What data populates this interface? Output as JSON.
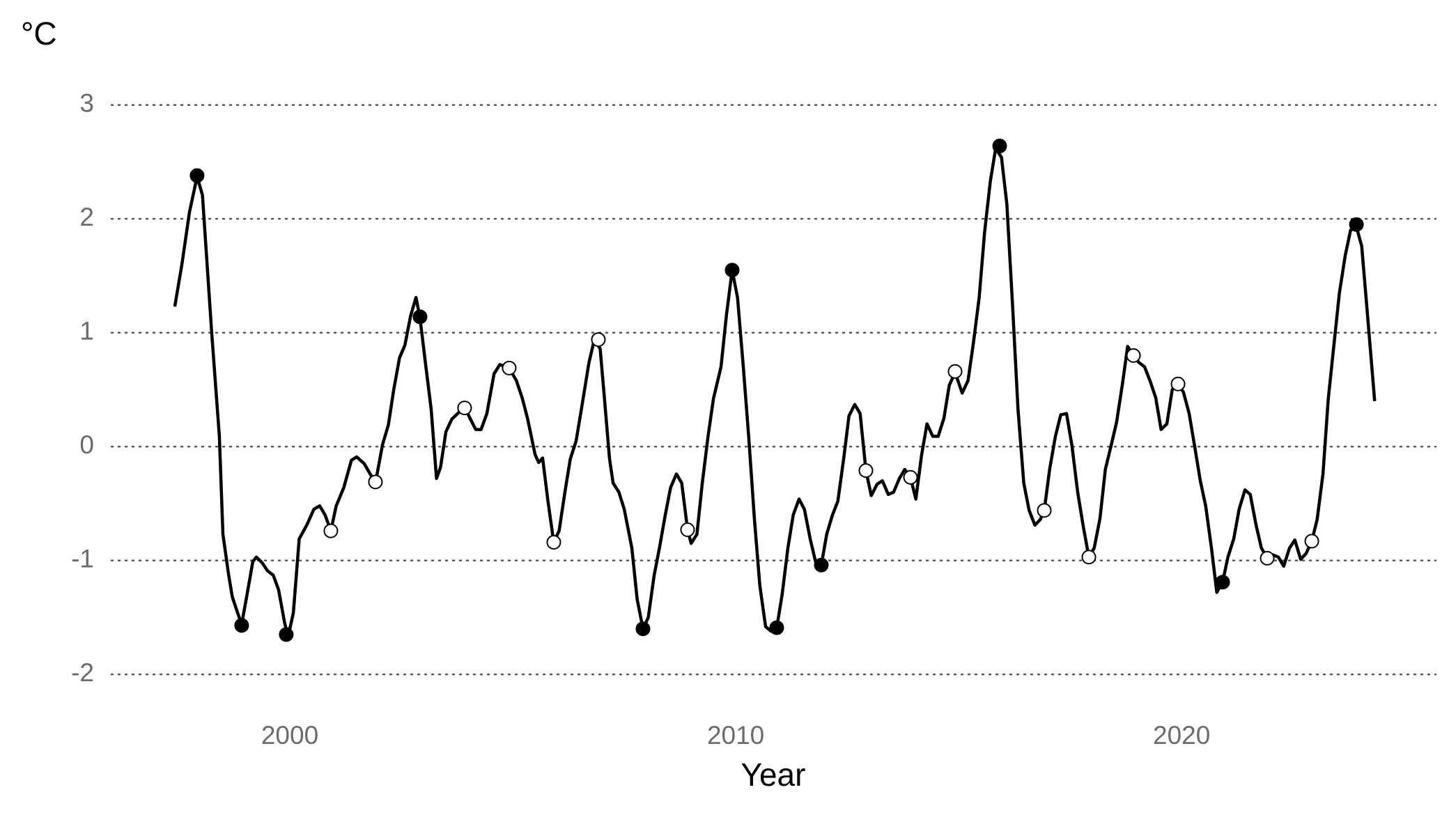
{
  "chart_data": {
    "type": "line",
    "y_label": "°C",
    "x_label": "Year",
    "xlim": [
      1996,
      2025.7
    ],
    "ylim": [
      -2.25,
      3.2
    ],
    "xticks": [
      2000,
      2010,
      2020
    ],
    "yticks": [
      -2,
      -1,
      0,
      1,
      2,
      3
    ],
    "grid": true,
    "series": [
      {
        "style": "line",
        "color": "#000000",
        "x": [
          1997.42,
          1997.58,
          1997.75,
          1997.92,
          1998.04,
          1998.25,
          1998.42,
          1998.5,
          1998.63,
          1998.71,
          1998.83,
          1998.92,
          1999.04,
          1999.17,
          1999.25,
          1999.38,
          1999.5,
          1999.63,
          1999.75,
          1999.88,
          1999.96,
          2000.08,
          2000.21,
          2000.38,
          2000.54,
          2000.67,
          2000.79,
          2000.92,
          2001.04,
          2001.21,
          2001.38,
          2001.5,
          2001.67,
          2001.92,
          2002.08,
          2002.21,
          2002.33,
          2002.46,
          2002.58,
          2002.71,
          2002.83,
          2002.92,
          2003.04,
          2003.17,
          2003.29,
          2003.38,
          2003.5,
          2003.63,
          2003.79,
          2003.92,
          2004.04,
          2004.17,
          2004.29,
          2004.42,
          2004.58,
          2004.71,
          2004.92,
          2005.08,
          2005.21,
          2005.33,
          2005.5,
          2005.58,
          2005.67,
          2005.79,
          2005.92,
          2006.04,
          2006.17,
          2006.29,
          2006.42,
          2006.54,
          2006.71,
          2006.83,
          2006.96,
          2007.04,
          2007.17,
          2007.25,
          2007.38,
          2007.5,
          2007.67,
          2007.79,
          2007.92,
          2008.04,
          2008.17,
          2008.29,
          2008.42,
          2008.54,
          2008.67,
          2008.79,
          2008.92,
          2009.0,
          2009.13,
          2009.25,
          2009.38,
          2009.5,
          2009.67,
          2009.79,
          2009.92,
          2010.04,
          2010.17,
          2010.29,
          2010.42,
          2010.54,
          2010.67,
          2010.79,
          2010.92,
          2011.04,
          2011.17,
          2011.29,
          2011.42,
          2011.54,
          2011.67,
          2011.79,
          2011.92,
          2012.04,
          2012.17,
          2012.29,
          2012.42,
          2012.54,
          2012.67,
          2012.79,
          2012.92,
          2013.04,
          2013.17,
          2013.29,
          2013.42,
          2013.54,
          2013.67,
          2013.79,
          2013.92,
          2014.04,
          2014.17,
          2014.29,
          2014.42,
          2014.54,
          2014.67,
          2014.79,
          2014.92,
          2015.08,
          2015.21,
          2015.33,
          2015.46,
          2015.58,
          2015.71,
          2015.83,
          2015.96,
          2016.08,
          2016.21,
          2016.33,
          2016.46,
          2016.58,
          2016.71,
          2016.83,
          2016.92,
          2017.04,
          2017.17,
          2017.29,
          2017.42,
          2017.54,
          2017.67,
          2017.79,
          2017.92,
          2018.04,
          2018.17,
          2018.29,
          2018.42,
          2018.54,
          2018.67,
          2018.79,
          2018.92,
          2019.04,
          2019.17,
          2019.29,
          2019.42,
          2019.54,
          2019.67,
          2019.79,
          2019.92,
          2020.04,
          2020.17,
          2020.29,
          2020.42,
          2020.54,
          2020.67,
          2020.79,
          2020.92,
          2021.04,
          2021.17,
          2021.29,
          2021.42,
          2021.54,
          2021.67,
          2021.79,
          2021.92,
          2022.04,
          2022.17,
          2022.29,
          2022.42,
          2022.54,
          2022.67,
          2022.79,
          2022.92,
          2023.04,
          2023.17,
          2023.29,
          2023.42,
          2023.54,
          2023.67,
          2023.79,
          2023.92,
          2024.04,
          2024.17,
          2024.33
        ],
        "values": [
          1.23,
          1.6,
          2.06,
          2.37,
          2.21,
          0.99,
          0.09,
          -0.77,
          -1.13,
          -1.32,
          -1.46,
          -1.56,
          -1.3,
          -1.01,
          -0.97,
          -1.02,
          -1.09,
          -1.13,
          -1.26,
          -1.54,
          -1.67,
          -1.46,
          -0.81,
          -0.69,
          -0.55,
          -0.52,
          -0.6,
          -0.74,
          -0.52,
          -0.36,
          -0.12,
          -0.09,
          -0.15,
          -0.32,
          0.02,
          0.19,
          0.5,
          0.78,
          0.89,
          1.15,
          1.31,
          1.13,
          0.74,
          0.33,
          -0.28,
          -0.18,
          0.13,
          0.24,
          0.3,
          0.35,
          0.25,
          0.15,
          0.15,
          0.29,
          0.64,
          0.72,
          0.69,
          0.58,
          0.43,
          0.25,
          -0.07,
          -0.14,
          -0.1,
          -0.48,
          -0.84,
          -0.74,
          -0.4,
          -0.11,
          0.05,
          0.33,
          0.74,
          0.94,
          0.86,
          0.5,
          -0.11,
          -0.32,
          -0.4,
          -0.55,
          -0.89,
          -1.34,
          -1.6,
          -1.5,
          -1.13,
          -0.89,
          -0.6,
          -0.36,
          -0.24,
          -0.32,
          -0.73,
          -0.85,
          -0.77,
          -0.32,
          0.09,
          0.42,
          0.7,
          1.15,
          1.55,
          1.31,
          0.7,
          0.09,
          -0.64,
          -1.22,
          -1.58,
          -1.62,
          -1.59,
          -1.3,
          -0.89,
          -0.6,
          -0.46,
          -0.55,
          -0.81,
          -1.01,
          -1.04,
          -0.77,
          -0.6,
          -0.48,
          -0.11,
          0.27,
          0.37,
          0.29,
          -0.21,
          -0.43,
          -0.33,
          -0.3,
          -0.42,
          -0.4,
          -0.28,
          -0.2,
          -0.27,
          -0.46,
          -0.07,
          0.2,
          0.09,
          0.09,
          0.25,
          0.54,
          0.65,
          0.47,
          0.58,
          0.91,
          1.31,
          1.88,
          2.33,
          2.62,
          2.54,
          2.13,
          1.23,
          0.33,
          -0.32,
          -0.56,
          -0.69,
          -0.64,
          -0.56,
          -0.2,
          0.09,
          0.28,
          0.29,
          0.01,
          -0.4,
          -0.69,
          -0.97,
          -0.89,
          -0.63,
          -0.2,
          0.01,
          0.21,
          0.54,
          0.88,
          0.8,
          0.74,
          0.7,
          0.58,
          0.43,
          0.15,
          0.2,
          0.5,
          0.55,
          0.48,
          0.29,
          0.01,
          -0.3,
          -0.52,
          -0.89,
          -1.28,
          -1.19,
          -0.97,
          -0.81,
          -0.55,
          -0.38,
          -0.42,
          -0.69,
          -0.89,
          -0.98,
          -0.95,
          -0.97,
          -1.05,
          -0.89,
          -0.82,
          -0.99,
          -0.94,
          -0.83,
          -0.64,
          -0.24,
          0.42,
          0.91,
          1.35,
          1.68,
          1.9,
          1.93,
          1.76,
          1.15,
          0.4
        ]
      },
      {
        "style": "points",
        "color": "#000000",
        "fill": "#000000",
        "x": [
          1997.92,
          1998.92,
          1999.92,
          2002.92,
          2007.92,
          2009.92,
          2010.92,
          2011.92,
          2015.92,
          2020.92,
          2023.92
        ],
        "values": [
          2.38,
          -1.57,
          -1.65,
          1.14,
          -1.6,
          1.55,
          -1.59,
          -1.04,
          2.64,
          -1.19,
          1.95
        ]
      },
      {
        "style": "points",
        "color": "#000000",
        "fill": "#ffffff",
        "x": [
          2000.92,
          2001.92,
          2003.92,
          2004.92,
          2005.92,
          2006.92,
          2008.92,
          2012.92,
          2013.92,
          2014.92,
          2016.92,
          2017.92,
          2018.92,
          2019.92,
          2021.92,
          2022.92
        ],
        "values": [
          -0.74,
          -0.31,
          0.34,
          0.69,
          -0.84,
          0.94,
          -0.73,
          -0.21,
          -0.27,
          0.66,
          -0.56,
          -0.97,
          0.8,
          0.55,
          -0.98,
          -0.83
        ]
      }
    ]
  }
}
